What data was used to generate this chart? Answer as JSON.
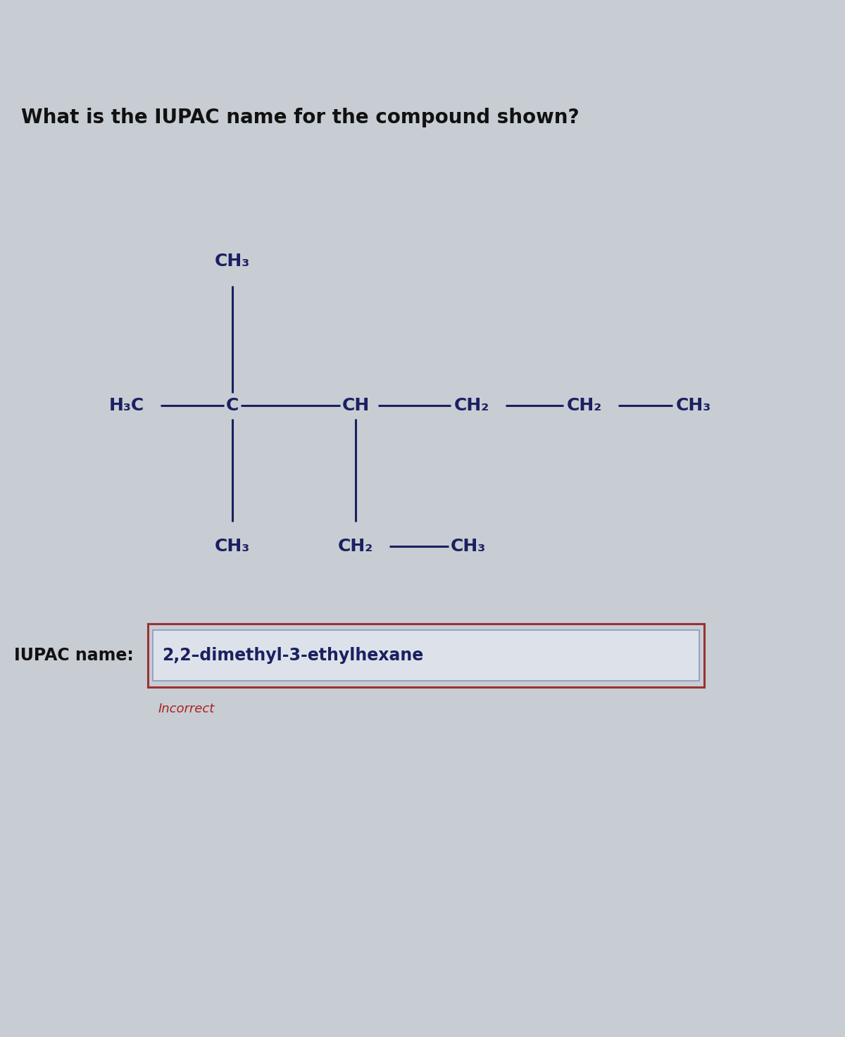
{
  "title": "What is the IUPAC name for the compound shown?",
  "title_fontsize": 20,
  "title_color": "#111111",
  "bg_color_top": "#b0b5bc",
  "bg_color_main": "#c8cdd4",
  "text_color": "#1a2060",
  "chem_fontsize": 18,
  "bond_color": "#1a2060",
  "bond_lw": 2.2,
  "iupac_label": "IUPAC name:",
  "iupac_answer": "2,2–dimethyl-3-ethylhexane",
  "iupac_fontsize": 17,
  "incorrect_text": "Incorrect",
  "incorrect_color": "#aa2222",
  "incorrect_fontsize": 13,
  "box_border_color": "#993333",
  "inner_box_color": "#8899bb",
  "inner_box_fill": "#dde2ea",
  "answer_text_color": "#1a2060"
}
